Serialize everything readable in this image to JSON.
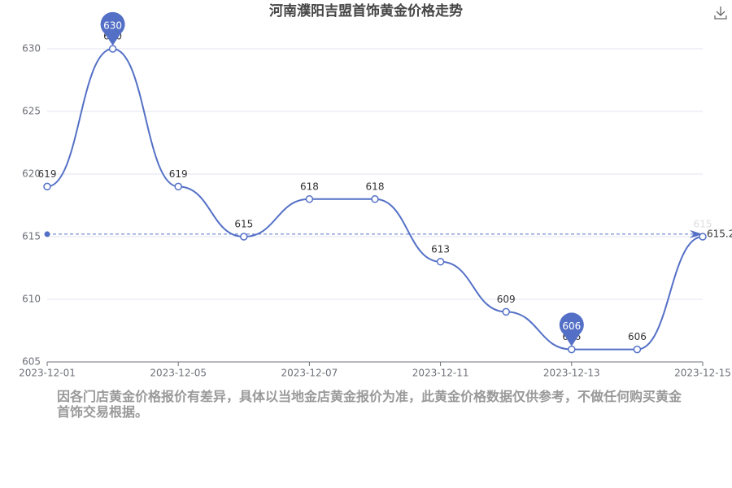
{
  "chart_data": {
    "type": "line",
    "title": "河南濮阳吉盟首饰黄金价格走势",
    "categories": [
      "2023-12-01",
      null,
      "2023-12-05",
      null,
      "2023-12-07",
      null,
      "2023-12-11",
      null,
      "2023-12-13",
      null,
      "2023-12-15"
    ],
    "series": [
      {
        "color": "#5470c6",
        "values": [
          619,
          630,
          619,
          615,
          618,
          618,
          613,
          609,
          606,
          606,
          615
        ]
      }
    ],
    "ylim": [
      605,
      630
    ],
    "yticks": [
      605,
      610,
      615,
      620,
      625,
      630
    ],
    "grid": true,
    "max_point_index": 1,
    "min_point_index": 8,
    "average": 615.2,
    "note": "因各门店黄金价格报价有差异，具体以当地金店黄金报价为准，此黄金价格数据仅供参考，不做任何购买黄金首饰交易根据。"
  }
}
